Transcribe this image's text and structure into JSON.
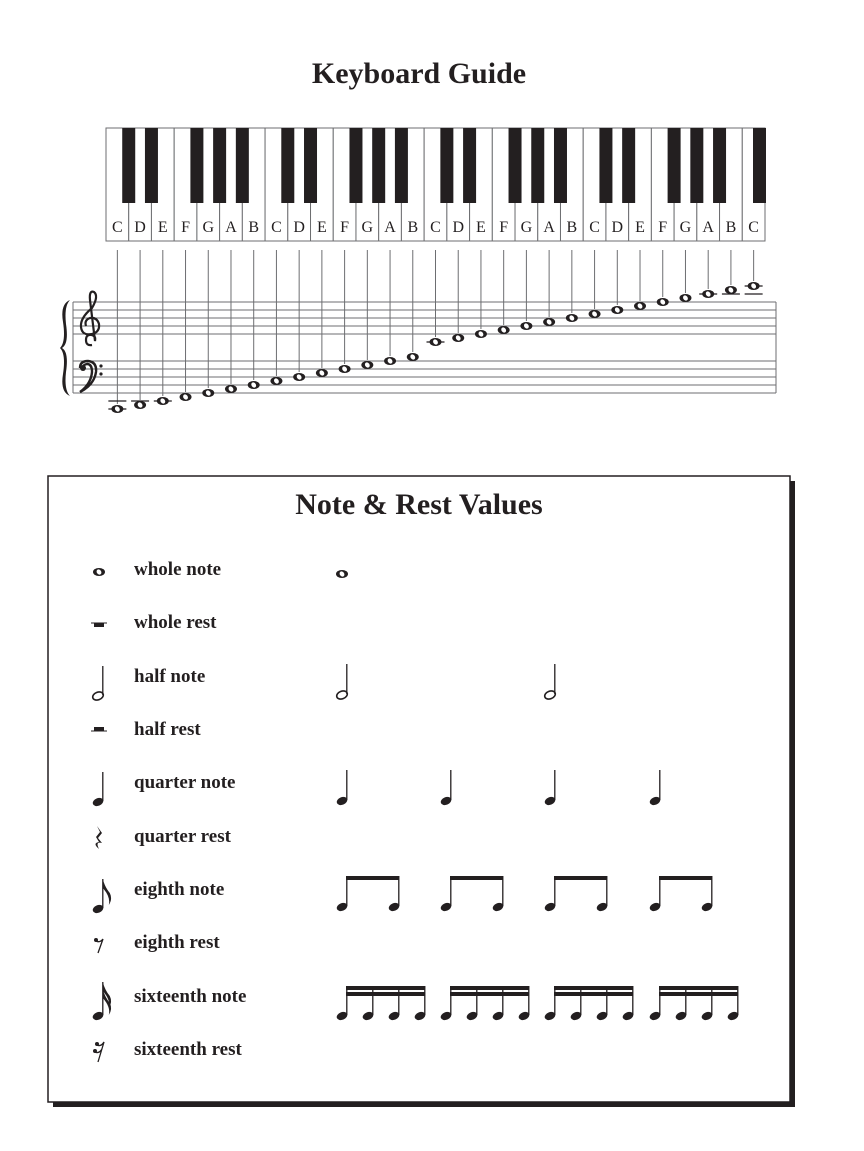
{
  "keyboard_guide": {
    "title": "Keyboard Guide",
    "white_keys": [
      "C",
      "D",
      "E",
      "F",
      "G",
      "A",
      "B",
      "C",
      "D",
      "E",
      "F",
      "G",
      "A",
      "B",
      "C",
      "D",
      "E",
      "F",
      "G",
      "A",
      "B",
      "C",
      "D",
      "E",
      "F",
      "G",
      "A",
      "B",
      "C"
    ],
    "staff_range": "C2 to C6",
    "clefs": [
      "treble-clef",
      "bass-clef"
    ]
  },
  "note_rest_values": {
    "title": "Note & Rest Values",
    "rows": [
      {
        "label": "whole note",
        "icon": "whole-note",
        "examples": 1
      },
      {
        "label": "whole rest",
        "icon": "whole-rest",
        "examples": 0
      },
      {
        "label": "half note",
        "icon": "half-note",
        "examples": 2
      },
      {
        "label": "half rest",
        "icon": "half-rest",
        "examples": 0
      },
      {
        "label": "quarter note",
        "icon": "quarter-note",
        "examples": 4
      },
      {
        "label": "quarter rest",
        "icon": "quarter-rest",
        "examples": 0
      },
      {
        "label": "eighth note",
        "icon": "eighth-note",
        "examples": 8
      },
      {
        "label": "eighth rest",
        "icon": "eighth-rest",
        "examples": 0
      },
      {
        "label": "sixteenth note",
        "icon": "sixteenth-note",
        "examples": 16
      },
      {
        "label": "sixteenth rest",
        "icon": "sixteenth-rest",
        "examples": 0
      }
    ]
  },
  "colors": {
    "ink": "#231f20",
    "paper": "#ffffff",
    "line": "#6d6e71"
  }
}
